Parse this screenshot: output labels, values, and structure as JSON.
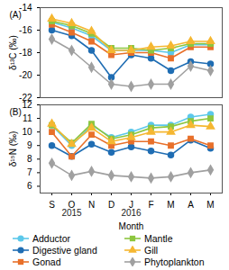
{
  "chart_data": [
    {
      "type": "line",
      "title": "(A)",
      "ylabel": "δ¹³C (‰)",
      "categories": [
        "S",
        "O",
        "N",
        "D",
        "J",
        "F",
        "M",
        "A",
        "M"
      ],
      "ylim": [
        -22,
        -14
      ],
      "yticks": [
        -22,
        -20,
        -18,
        -16,
        -14
      ],
      "tick_labels": "y",
      "series": [
        {
          "name": "Adductor",
          "color": "#5cc8ea",
          "marker": "circle",
          "values": [
            -15.3,
            -15.8,
            -16.5,
            -17.8,
            -17.8,
            -17.8,
            -18.0,
            -17.3,
            -17.3
          ]
        },
        {
          "name": "Digestive gland",
          "color": "#1f6db3",
          "marker": "circle",
          "values": [
            -16.0,
            -16.5,
            -17.8,
            -20.2,
            -18.2,
            -18.5,
            -19.6,
            -18.8,
            -19.0
          ]
        },
        {
          "name": "Gonad",
          "color": "#e8702a",
          "marker": "square",
          "values": [
            -15.5,
            -16.2,
            -17.0,
            -18.2,
            -18.0,
            -18.0,
            -18.5,
            -17.5,
            -17.5
          ]
        },
        {
          "name": "Mantle",
          "color": "#8dc63f",
          "marker": "square",
          "values": [
            -15.2,
            -15.6,
            -16.3,
            -17.6,
            -17.6,
            -17.8,
            -17.6,
            -17.2,
            -17.2
          ]
        },
        {
          "name": "Gill",
          "color": "#f5b731",
          "marker": "triangle",
          "values": [
            -15.0,
            -15.4,
            -16.1,
            -17.8,
            -17.8,
            -17.5,
            -17.4,
            -17.0,
            -17.0
          ]
        },
        {
          "name": "Phytoplankton",
          "color": "#a0a0a0",
          "marker": "diamond",
          "values": [
            -16.8,
            -17.8,
            -19.3,
            -20.8,
            -21.0,
            -20.8,
            -20.8,
            -19.2,
            -19.6
          ]
        }
      ]
    },
    {
      "type": "line",
      "title": "(B)",
      "ylabel": "δ¹⁵N (‰)",
      "xlabel": "Month",
      "categories": [
        "S",
        "O",
        "N",
        "D",
        "J",
        "F",
        "M",
        "A",
        "M"
      ],
      "annotations": [
        {
          "text": "2015",
          "x": "O"
        },
        {
          "text": "2016",
          "x": "J"
        }
      ],
      "ylim": [
        5.5,
        12
      ],
      "yticks": [
        6,
        7,
        8,
        9,
        10,
        11,
        12
      ],
      "legend": "bottom",
      "series": [
        {
          "name": "Adductor",
          "color": "#5cc8ea",
          "marker": "circle",
          "values": [
            10.5,
            9.0,
            10.5,
            9.6,
            10.0,
            10.5,
            10.5,
            11.1,
            11.3
          ]
        },
        {
          "name": "Digestive gland",
          "color": "#1f6db3",
          "marker": "circle",
          "values": [
            9.0,
            8.2,
            9.1,
            8.5,
            8.9,
            8.6,
            8.3,
            9.4,
            8.8
          ]
        },
        {
          "name": "Gonad",
          "color": "#e8702a",
          "marker": "square",
          "values": [
            10.0,
            8.2,
            9.8,
            9.0,
            9.3,
            9.3,
            9.0,
            9.5,
            9.0
          ]
        },
        {
          "name": "Mantle",
          "color": "#8dc63f",
          "marker": "square",
          "values": [
            10.5,
            9.2,
            10.6,
            9.5,
            9.8,
            10.3,
            10.4,
            10.8,
            11.0
          ]
        },
        {
          "name": "Gill",
          "color": "#f5b731",
          "marker": "triangle",
          "values": [
            10.6,
            9.1,
            10.3,
            9.3,
            9.6,
            10.0,
            10.0,
            10.5,
            10.4
          ]
        },
        {
          "name": "Phytoplankton",
          "color": "#a0a0a0",
          "marker": "diamond",
          "values": [
            7.7,
            6.8,
            7.1,
            6.8,
            6.7,
            6.6,
            6.7,
            7.0,
            7.2
          ]
        }
      ]
    }
  ]
}
